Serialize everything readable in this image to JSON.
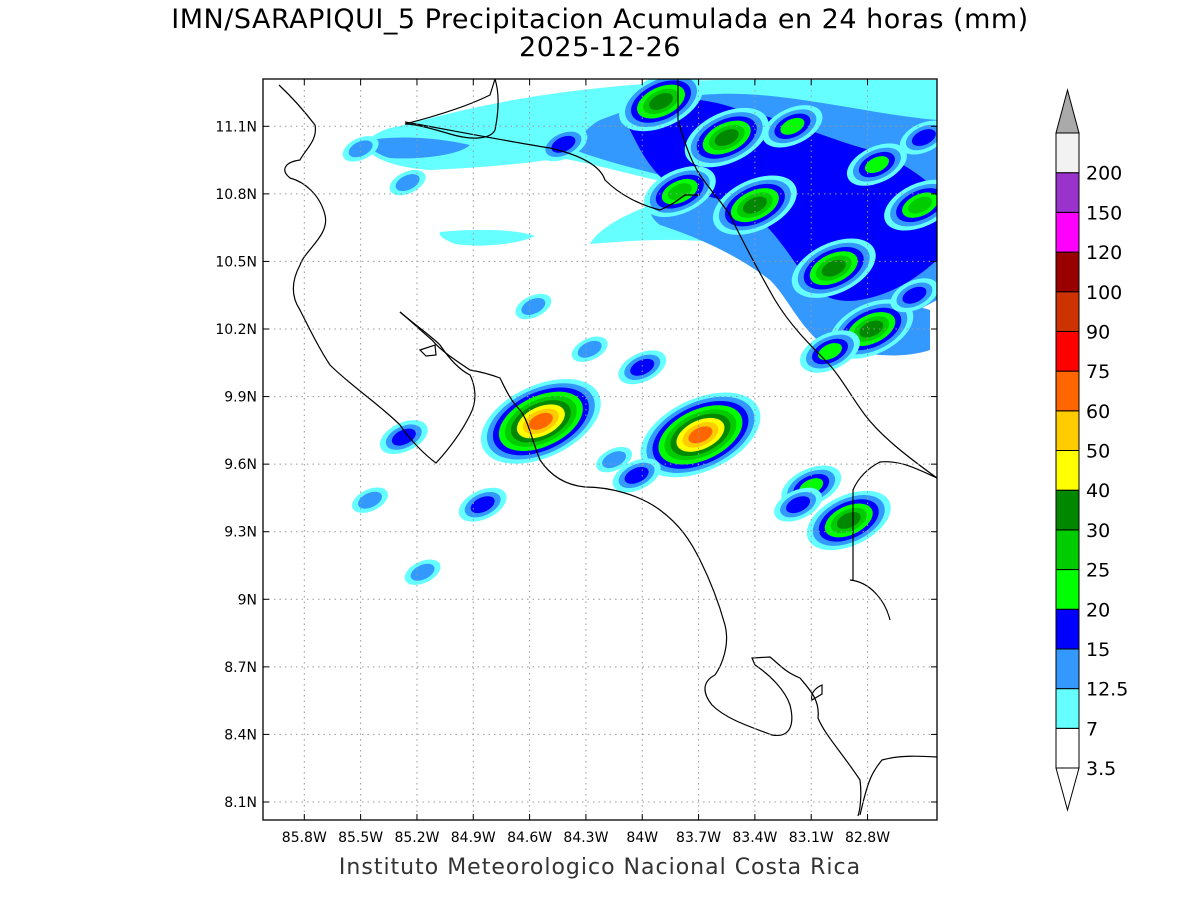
{
  "title": "IMN/SARAPIQUI_5 Precipitacion Acumulada en 24 horas (mm)",
  "subtitle": "2025-12-26",
  "footer": "Instituto Meteorologico Nacional Costa Rica",
  "map": {
    "lon_range": [
      -86.02,
      -82.43
    ],
    "lat_range": [
      8.02,
      11.31
    ],
    "lat_ticks": [
      {
        "v": 11.1,
        "label": "11.1N"
      },
      {
        "v": 10.8,
        "label": "10.8N"
      },
      {
        "v": 10.5,
        "label": "10.5N"
      },
      {
        "v": 10.2,
        "label": "10.2N"
      },
      {
        "v": 9.9,
        "label": "9.9N"
      },
      {
        "v": 9.6,
        "label": "9.6N"
      },
      {
        "v": 9.3,
        "label": "9.3N"
      },
      {
        "v": 9.0,
        "label": "9N"
      },
      {
        "v": 8.7,
        "label": "8.7N"
      },
      {
        "v": 8.4,
        "label": "8.4N"
      },
      {
        "v": 8.1,
        "label": "8.1N"
      }
    ],
    "lon_ticks": [
      {
        "v": -85.8,
        "label": "85.8W"
      },
      {
        "v": -85.5,
        "label": "85.5W"
      },
      {
        "v": -85.2,
        "label": "85.2W"
      },
      {
        "v": -84.9,
        "label": "84.9W"
      },
      {
        "v": -84.6,
        "label": "84.6W"
      },
      {
        "v": -84.3,
        "label": "84.3W"
      },
      {
        "v": -84.0,
        "label": "84W"
      },
      {
        "v": -83.7,
        "label": "83.7W"
      },
      {
        "v": -83.4,
        "label": "83.4W"
      },
      {
        "v": -83.1,
        "label": "83.1W"
      },
      {
        "v": -82.8,
        "label": "82.8W"
      }
    ]
  },
  "legend": {
    "levels": [
      {
        "label": "3.5",
        "color": "#ffffff"
      },
      {
        "label": "7",
        "color": "#66ffff"
      },
      {
        "label": "12.5",
        "color": "#3399ff"
      },
      {
        "label": "15",
        "color": "#0000ff"
      },
      {
        "label": "20",
        "color": "#00ff00"
      },
      {
        "label": "25",
        "color": "#00cc00"
      },
      {
        "label": "30",
        "color": "#008800"
      },
      {
        "label": "40",
        "color": "#ffff00"
      },
      {
        "label": "50",
        "color": "#ffcc00"
      },
      {
        "label": "60",
        "color": "#ff6600"
      },
      {
        "label": "75",
        "color": "#ff0000"
      },
      {
        "label": "90",
        "color": "#cc3300"
      },
      {
        "label": "100",
        "color": "#990000"
      },
      {
        "label": "120",
        "color": "#ff00ff"
      },
      {
        "label": "150",
        "color": "#9933cc"
      },
      {
        "label": "200",
        "color": "#f2f2f2"
      }
    ],
    "over_color": "#aaaaaa",
    "under_color": "#ffffff"
  },
  "precip_cells": [
    {
      "lon": -83.9,
      "lat": 11.21,
      "l": 6
    },
    {
      "lon": -83.55,
      "lat": 11.05,
      "l": 6
    },
    {
      "lon": -83.4,
      "lat": 10.75,
      "l": 6
    },
    {
      "lon": -83.8,
      "lat": 10.81,
      "l": 5
    },
    {
      "lon": -82.98,
      "lat": 10.47,
      "l": 6
    },
    {
      "lon": -82.78,
      "lat": 10.2,
      "l": 6
    },
    {
      "lon": -82.52,
      "lat": 10.75,
      "l": 5
    },
    {
      "lon": -83.2,
      "lat": 11.1,
      "l": 4
    },
    {
      "lon": -83.69,
      "lat": 9.73,
      "l": 9
    },
    {
      "lon": -84.54,
      "lat": 9.79,
      "l": 9
    },
    {
      "lon": -82.9,
      "lat": 9.35,
      "l": 6
    },
    {
      "lon": -84.0,
      "lat": 10.03,
      "l": 3
    },
    {
      "lon": -83.1,
      "lat": 9.5,
      "l": 4
    },
    {
      "lon": -83.17,
      "lat": 9.42,
      "l": 3
    },
    {
      "lon": -84.85,
      "lat": 9.42,
      "l": 3
    },
    {
      "lon": -85.27,
      "lat": 9.72,
      "l": 3
    },
    {
      "lon": -84.03,
      "lat": 9.55,
      "l": 3
    },
    {
      "lon": -84.15,
      "lat": 9.62,
      "l": 2
    },
    {
      "lon": -84.42,
      "lat": 11.02,
      "l": 3
    },
    {
      "lon": -85.45,
      "lat": 9.44,
      "l": 2
    },
    {
      "lon": -84.28,
      "lat": 10.11,
      "l": 2
    },
    {
      "lon": -84.58,
      "lat": 10.3,
      "l": 2
    },
    {
      "lon": -85.17,
      "lat": 9.12,
      "l": 2
    },
    {
      "lon": -85.5,
      "lat": 11.0,
      "l": 2
    },
    {
      "lon": -85.25,
      "lat": 10.85,
      "l": 2
    },
    {
      "lon": -82.75,
      "lat": 10.93,
      "l": 4
    },
    {
      "lon": -82.55,
      "lat": 10.35,
      "l": 3
    },
    {
      "lon": -82.5,
      "lat": 11.05,
      "l": 3
    },
    {
      "lon": -83.0,
      "lat": 10.1,
      "l": 4
    }
  ]
}
